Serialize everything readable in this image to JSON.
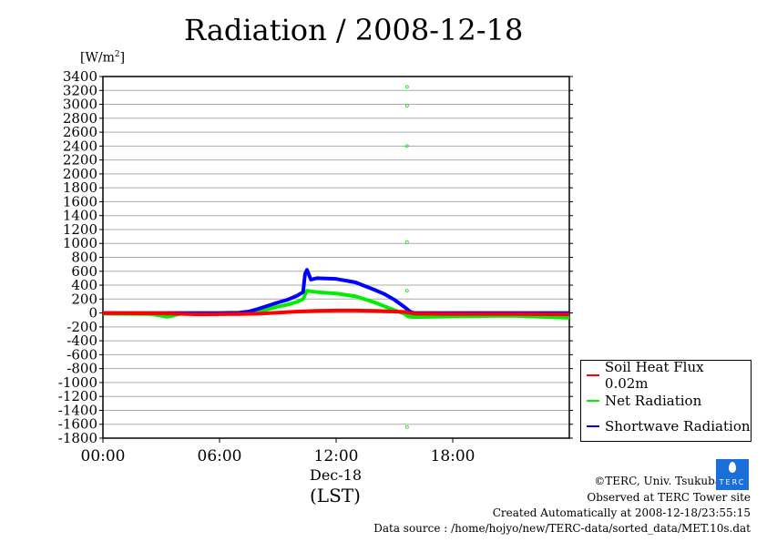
{
  "chart_data": {
    "type": "line",
    "title": "Radiation / 2008-12-18",
    "ylabel": "[W/m2]",
    "xlabel": "(LST)",
    "x_date_label": "Dec-18",
    "ylim": [
      -1800,
      3400
    ],
    "xlim": [
      0,
      24
    ],
    "yticks": [
      3400,
      3200,
      3000,
      2800,
      2600,
      2400,
      2200,
      2000,
      1800,
      1600,
      1400,
      1200,
      1000,
      800,
      600,
      400,
      200,
      0,
      -200,
      -400,
      -600,
      -800,
      -1000,
      -1200,
      -1400,
      -1600,
      -1800
    ],
    "xticks": [
      {
        "h": 0,
        "label": "00:00"
      },
      {
        "h": 6,
        "label": "06:00"
      },
      {
        "h": 12,
        "label": "12:00"
      },
      {
        "h": 18,
        "label": "18:00"
      }
    ],
    "grid": true,
    "legend_position": "right",
    "series": [
      {
        "name": "Soil Heat Flux 0.02m",
        "color": "#ff0000",
        "x": [
          0,
          3,
          5,
          7,
          8,
          9,
          10,
          11,
          12,
          13,
          14,
          15,
          15.5,
          16,
          18,
          21,
          24
        ],
        "y": [
          0,
          -5,
          -20,
          -15,
          -10,
          5,
          20,
          30,
          35,
          35,
          30,
          20,
          15,
          -10,
          -15,
          -15,
          -20
        ]
      },
      {
        "name": "Net Radiation",
        "color": "#00ee00",
        "x": [
          0,
          2.5,
          3,
          3.3,
          3.6,
          4,
          6,
          7,
          8,
          9,
          9.5,
          10,
          10.3,
          10.5,
          11,
          12,
          13,
          14,
          15,
          15.5,
          15.7,
          16,
          18,
          21,
          22,
          24
        ],
        "y": [
          -10,
          -15,
          -40,
          -55,
          -40,
          -10,
          -10,
          -15,
          20,
          90,
          120,
          160,
          200,
          320,
          300,
          280,
          240,
          150,
          40,
          -10,
          -50,
          -60,
          -50,
          -40,
          -50,
          -70
        ]
      },
      {
        "name": "Shortwave Radiation",
        "color": "#0000ff",
        "x": [
          0,
          6,
          7,
          7.5,
          8,
          9,
          9.5,
          10,
          10.3,
          10.4,
          10.5,
          10.7,
          11,
          12,
          13,
          14,
          14.5,
          15,
          15.5,
          15.8,
          16,
          18,
          24
        ],
        "y": [
          0,
          0,
          5,
          20,
          60,
          150,
          190,
          250,
          300,
          560,
          620,
          480,
          500,
          490,
          440,
          330,
          270,
          190,
          90,
          20,
          0,
          0,
          0
        ]
      }
    ],
    "outliers": {
      "series": "Net Radiation",
      "x": 15.65,
      "y": [
        3250,
        2980,
        2400,
        1020,
        320,
        -1640
      ]
    }
  },
  "footer": {
    "copyright": "©TERC, Univ. Tsukuba",
    "logo_text": "TERC",
    "observed": "Observed at TERC Tower site",
    "created": "Created Automatically at 2008-12-18/23:55:15",
    "source": "Data source : /home/hojyo/new/TERC-data/sorted_data/MET.10s.dat"
  }
}
